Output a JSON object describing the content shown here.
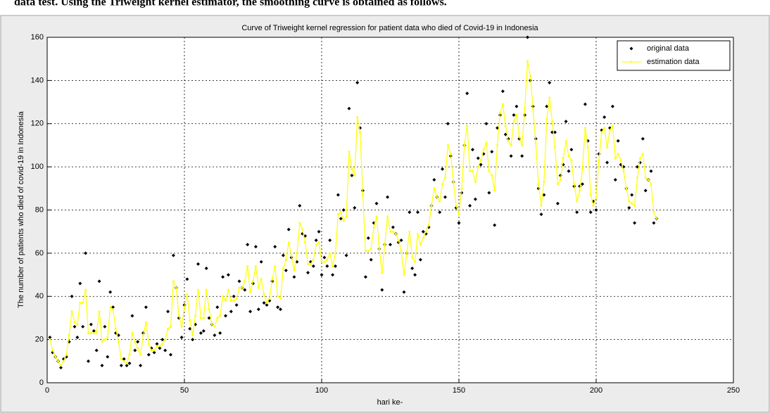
{
  "caption": "data test. Using the Triweight kernel estimator, the smoothing curve is obtained as follows.",
  "chart_data": {
    "type": "line",
    "title": "Curve of Triweight kernel regression for patient data who died of Covid-19 in Indonesia",
    "x_label": "hari ke-",
    "y_label": "The number of patients who died of covid-19 in Indonesia",
    "xlim": [
      0,
      250
    ],
    "xticks": [
      0,
      50,
      100,
      150,
      200,
      250
    ],
    "ylim": [
      0,
      160
    ],
    "yticks": [
      0,
      20,
      40,
      60,
      80,
      100,
      120,
      140,
      160
    ],
    "grid": true,
    "legend": "upper right",
    "x": [
      1,
      2,
      3,
      4,
      5,
      6,
      7,
      8,
      9,
      10,
      11,
      12,
      13,
      14,
      15,
      16,
      17,
      18,
      19,
      20,
      21,
      22,
      23,
      24,
      25,
      26,
      27,
      28,
      29,
      30,
      31,
      32,
      33,
      34,
      35,
      36,
      37,
      38,
      39,
      40,
      41,
      42,
      43,
      44,
      45,
      46,
      47,
      48,
      49,
      50,
      51,
      52,
      53,
      54,
      55,
      56,
      57,
      58,
      59,
      60,
      61,
      62,
      63,
      64,
      65,
      66,
      67,
      68,
      69,
      70,
      71,
      72,
      73,
      74,
      75,
      76,
      77,
      78,
      79,
      80,
      81,
      82,
      83,
      84,
      85,
      86,
      87,
      88,
      89,
      90,
      91,
      92,
      93,
      94,
      95,
      96,
      97,
      98,
      99,
      100,
      101,
      102,
      103,
      104,
      105,
      106,
      107,
      108,
      109,
      110,
      111,
      112,
      113,
      114,
      115,
      116,
      117,
      118,
      119,
      120,
      121,
      122,
      123,
      124,
      125,
      126,
      127,
      128,
      129,
      130,
      131,
      132,
      133,
      134,
      135,
      136,
      137,
      138,
      139,
      140,
      141,
      142,
      143,
      144,
      145,
      146,
      147,
      148,
      149,
      150,
      151,
      152,
      153,
      154,
      155,
      156,
      157,
      158,
      159,
      160,
      161,
      162,
      163,
      164,
      165,
      166,
      167,
      168,
      169,
      170,
      171,
      172,
      173,
      174,
      175,
      176,
      177,
      178,
      179,
      180,
      181,
      182,
      183,
      184,
      185,
      186,
      187,
      188,
      189,
      190,
      191,
      192,
      193,
      194,
      195,
      196,
      197,
      198,
      199,
      200,
      201,
      202,
      203,
      204,
      205,
      206,
      207,
      208,
      209,
      210,
      211,
      212,
      213,
      214,
      215,
      216,
      217,
      218,
      219,
      220,
      221,
      222
    ],
    "series": [
      {
        "name": "original data",
        "color": "#000000",
        "style": "markers",
        "values": [
          21,
          14,
          12,
          10,
          7,
          11,
          12,
          19,
          40,
          26,
          21,
          46,
          26,
          60,
          10,
          27,
          24,
          15,
          47,
          8,
          26,
          12,
          42,
          35,
          23,
          22,
          8,
          11,
          8,
          9,
          31,
          15,
          19,
          8,
          23,
          35,
          13,
          16,
          14,
          18,
          16,
          20,
          15,
          33,
          13,
          59,
          44,
          30,
          21,
          36,
          48,
          25,
          20,
          27,
          55,
          23,
          24,
          53,
          30,
          27,
          22,
          35,
          23,
          49,
          31,
          50,
          33,
          40,
          36,
          47,
          44,
          43,
          64,
          33,
          46,
          63,
          34,
          56,
          37,
          36,
          38,
          47,
          63,
          35,
          34,
          59,
          52,
          71,
          58,
          49,
          56,
          82,
          69,
          68,
          51,
          56,
          54,
          66,
          70,
          50,
          58,
          54,
          66,
          50,
          54,
          87,
          76,
          80,
          59,
          127,
          96,
          81,
          139,
          118,
          89,
          49,
          67,
          57,
          74,
          83,
          62,
          43,
          64,
          86,
          64,
          72,
          69,
          65,
          66,
          42,
          60,
          79,
          53,
          50,
          79,
          57,
          70,
          69,
          72,
          82,
          94,
          86,
          79,
          99,
          86,
          120,
          105,
          93,
          81,
          74,
          88,
          110,
          134,
          82,
          108,
          85,
          104,
          101,
          106,
          120,
          88,
          107,
          73,
          118,
          124,
          135,
          115,
          113,
          105,
          124,
          128,
          113,
          105,
          124,
          160,
          140,
          128,
          113,
          90,
          78,
          87,
          128,
          139,
          116,
          116,
          83,
          96,
          101,
          121,
          98,
          108,
          91,
          79,
          91,
          92,
          129,
          112,
          79,
          84,
          80,
          106,
          117,
          123,
          102,
          118,
          128,
          94,
          112,
          101,
          100,
          90,
          81,
          87,
          74,
          100,
          102,
          113,
          89,
          94,
          98,
          74,
          76
        ]
      },
      {
        "name": "estimation data",
        "color": "#ffff00",
        "style": "line-markers",
        "values": [
          20,
          15,
          12,
          10,
          8,
          10,
          13,
          22,
          33,
          28,
          27,
          37,
          37,
          43,
          23,
          23,
          23,
          23,
          33,
          19,
          20,
          21,
          35,
          34,
          25,
          19,
          11,
          10,
          9,
          13,
          23,
          19,
          16,
          13,
          22,
          28,
          18,
          15,
          15,
          17,
          17,
          18,
          20,
          25,
          26,
          47,
          44,
          31,
          26,
          35,
          41,
          29,
          22,
          31,
          43,
          30,
          30,
          43,
          34,
          27,
          26,
          30,
          31,
          40,
          38,
          43,
          38,
          38,
          39,
          44,
          44,
          47,
          54,
          42,
          47,
          54,
          44,
          48,
          41,
          37,
          39,
          48,
          54,
          40,
          39,
          53,
          57,
          65,
          59,
          52,
          60,
          74,
          71,
          65,
          55,
          55,
          57,
          64,
          65,
          56,
          56,
          57,
          60,
          54,
          60,
          78,
          79,
          75,
          77,
          107,
          99,
          96,
          123,
          116,
          87,
          61,
          61,
          62,
          72,
          77,
          62,
          51,
          64,
          77,
          70,
          70,
          69,
          66,
          61,
          50,
          60,
          70,
          58,
          56,
          69,
          64,
          67,
          70,
          73,
          82,
          90,
          86,
          84,
          92,
          95,
          110,
          106,
          93,
          82,
          78,
          90,
          110,
          119,
          98,
          98,
          93,
          100,
          103,
          108,
          111,
          98,
          96,
          89,
          110,
          125,
          129,
          119,
          112,
          110,
          121,
          124,
          114,
          110,
          127,
          149,
          142,
          127,
          111,
          92,
          82,
          93,
          122,
          132,
          121,
          109,
          92,
          94,
          104,
          112,
          105,
          103,
          92,
          84,
          89,
          99,
          118,
          109,
          87,
          82,
          86,
          103,
          116,
          118,
          109,
          117,
          119,
          104,
          106,
          103,
          98,
          90,
          84,
          83,
          82,
          95,
          104,
          106,
          95,
          94,
          92,
          79,
          76
        ]
      }
    ]
  }
}
